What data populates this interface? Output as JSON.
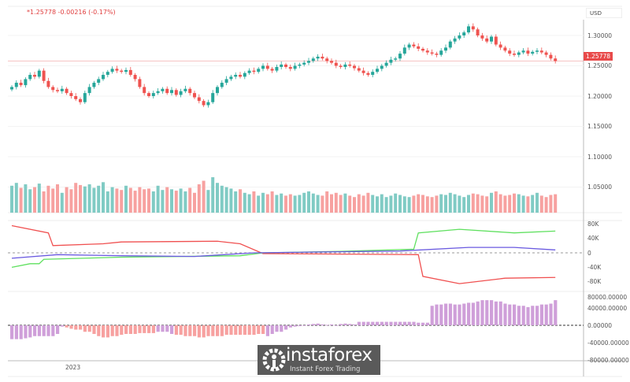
{
  "header": {
    "quote": "*1.25778  -0.00216 (-0.17%)",
    "currency": "USD",
    "last_price": "1.25778"
  },
  "time_axis": {
    "labels": [
      "2023"
    ]
  },
  "logo": {
    "name": "instaforex",
    "tagline": "Instant Forex Trading"
  },
  "colors": {
    "up": "#26a69a",
    "down": "#ef5350",
    "volume_up": "#80cbc4",
    "volume_down": "#f7a1a0",
    "cot_red": "#f05050",
    "cot_green": "#5fe05f",
    "cot_blue": "#6a5ae0",
    "hist_purple": "#cf9fd9",
    "hist_red": "#f7a1a0"
  },
  "chart_data": [
    {
      "type": "candlestick",
      "panel": "price",
      "ylim": [
        1.02,
        1.32
      ],
      "y_ticks": [
        "1.30000",
        "1.25000",
        "1.20000",
        "1.15000",
        "1.10000",
        "1.05000"
      ],
      "y_tick_values": [
        1.3,
        1.25,
        1.2,
        1.15,
        1.1,
        1.05
      ],
      "closes": [
        1.215,
        1.222,
        1.218,
        1.228,
        1.235,
        1.232,
        1.242,
        1.225,
        1.215,
        1.21,
        1.208,
        1.212,
        1.205,
        1.2,
        1.195,
        1.19,
        1.205,
        1.215,
        1.222,
        1.228,
        1.235,
        1.24,
        1.245,
        1.242,
        1.24,
        1.243,
        1.235,
        1.228,
        1.215,
        1.205,
        1.2,
        1.205,
        1.208,
        1.212,
        1.205,
        1.21,
        1.202,
        1.208,
        1.212,
        1.205,
        1.198,
        1.192,
        1.185,
        1.19,
        1.205,
        1.215,
        1.222,
        1.228,
        1.232,
        1.235,
        1.232,
        1.238,
        1.242,
        1.24,
        1.245,
        1.25,
        1.245,
        1.242,
        1.248,
        1.252,
        1.248,
        1.245,
        1.25,
        1.252,
        1.255,
        1.258,
        1.262,
        1.265,
        1.262,
        1.258,
        1.255,
        1.25,
        1.248,
        1.252,
        1.25,
        1.246,
        1.242,
        1.238,
        1.235,
        1.24,
        1.245,
        1.25,
        1.255,
        1.26,
        1.262,
        1.27,
        1.28,
        1.285,
        1.282,
        1.278,
        1.275,
        1.272,
        1.27,
        1.268,
        1.275,
        1.28,
        1.29,
        1.295,
        1.3,
        1.305,
        1.315,
        1.31,
        1.3,
        1.295,
        1.29,
        1.298,
        1.285,
        1.28,
        1.275,
        1.27,
        1.268,
        1.272,
        1.275,
        1.27,
        1.273,
        1.275,
        1.272,
        1.268,
        1.262,
        1.2578
      ],
      "last": 1.25778
    },
    {
      "type": "bar",
      "panel": "volume",
      "values": [
        38,
        42,
        35,
        40,
        33,
        36,
        41,
        30,
        38,
        34,
        40,
        28,
        36,
        33,
        42,
        39,
        37,
        40,
        35,
        38,
        43,
        30,
        36,
        34,
        32,
        38,
        35,
        31,
        36,
        33,
        34,
        30,
        38,
        32,
        36,
        33,
        31,
        34,
        30,
        35,
        28,
        40,
        45,
        32,
        50,
        42,
        38,
        36,
        34,
        30,
        33,
        28,
        26,
        30,
        24,
        28,
        26,
        30,
        25,
        27,
        24,
        26,
        24,
        25,
        28,
        30,
        27,
        25,
        24,
        30,
        26,
        28,
        25,
        27,
        24,
        22,
        26,
        24,
        28,
        25,
        23,
        26,
        22,
        24,
        27,
        25,
        23,
        22,
        24,
        26,
        25,
        23,
        22,
        24,
        26,
        25,
        28,
        26,
        24,
        22,
        25,
        27,
        26,
        24,
        23,
        28,
        30,
        26,
        24,
        25,
        27,
        26,
        24,
        23,
        25,
        28,
        24,
        22,
        25,
        26,
        24
      ]
    },
    {
      "type": "line",
      "panel": "cot",
      "ylim": [
        -90,
        90
      ],
      "y_ticks": [
        "80K",
        "40K",
        "0",
        "-40K",
        "-80K"
      ],
      "y_tick_values": [
        80,
        40,
        0,
        -40,
        -80
      ],
      "series": [
        {
          "color": "cot_red",
          "points": [
            [
              0,
              75
            ],
            [
              8,
              55
            ],
            [
              9,
              20
            ],
            [
              20,
              25
            ],
            [
              24,
              30
            ],
            [
              45,
              32
            ],
            [
              50,
              25
            ],
            [
              55,
              -2
            ],
            [
              89,
              -5
            ],
            [
              90,
              -65
            ],
            [
              98,
              -85
            ],
            [
              108,
              -70
            ],
            [
              119,
              -68
            ]
          ]
        },
        {
          "color": "cot_green",
          "points": [
            [
              0,
              -40
            ],
            [
              4,
              -30
            ],
            [
              6,
              -30
            ],
            [
              7,
              -18
            ],
            [
              24,
              -12
            ],
            [
              50,
              -8
            ],
            [
              55,
              0
            ],
            [
              72,
              4
            ],
            [
              88,
              10
            ],
            [
              89,
              55
            ],
            [
              98,
              65
            ],
            [
              110,
              55
            ],
            [
              119,
              60
            ]
          ]
        },
        {
          "color": "cot_blue",
          "points": [
            [
              0,
              -15
            ],
            [
              10,
              -5
            ],
            [
              24,
              -8
            ],
            [
              40,
              -10
            ],
            [
              53,
              0
            ],
            [
              85,
              5
            ],
            [
              100,
              15
            ],
            [
              110,
              15
            ],
            [
              119,
              8
            ]
          ]
        }
      ]
    },
    {
      "type": "bar",
      "panel": "histogram",
      "ylim": [
        -85000,
        85000
      ],
      "y_ticks": [
        "80000.00000",
        "40000.00000",
        "0.00000",
        "-40000.00000",
        "-80000.00000"
      ],
      "y_tick_values": [
        80000,
        40000,
        0,
        -40000,
        -80000
      ],
      "values_k": [
        -32,
        -32,
        -32,
        -30,
        -28,
        -25,
        -25,
        -25,
        -25,
        -25,
        -20,
        -3,
        -5,
        -8,
        -10,
        -10,
        -15,
        -15,
        -20,
        -25,
        -28,
        -28,
        -25,
        -25,
        -22,
        -20,
        -20,
        -20,
        -18,
        -18,
        -18,
        -18,
        -15,
        -15,
        -15,
        -20,
        -22,
        -22,
        -25,
        -25,
        -25,
        -28,
        -28,
        -25,
        -25,
        -25,
        -25,
        -22,
        -22,
        -22,
        -22,
        -22,
        -22,
        -22,
        -20,
        -20,
        -25,
        -20,
        -15,
        -15,
        -10,
        -5,
        -3,
        -2,
        0,
        2,
        3,
        4,
        2,
        1,
        2,
        0,
        3,
        4,
        3,
        2,
        8,
        8,
        8,
        8,
        8,
        8,
        8,
        8,
        8,
        8,
        8,
        8,
        8,
        6,
        6,
        6,
        45,
        48,
        48,
        50,
        50,
        48,
        48,
        50,
        52,
        52,
        55,
        58,
        58,
        58,
        55,
        55,
        50,
        48,
        48,
        45,
        45,
        42,
        45,
        45,
        48,
        48,
        50,
        58
      ],
      "color_codes": "pppppppppppmrrrrrrrrrrrrrrrrrrrrpppsrrrrrrrrrrrrrrrrrrrrppppppppppppppppppppppppppppppppppppppppppppppppppppppppppppppppp"
    }
  ]
}
